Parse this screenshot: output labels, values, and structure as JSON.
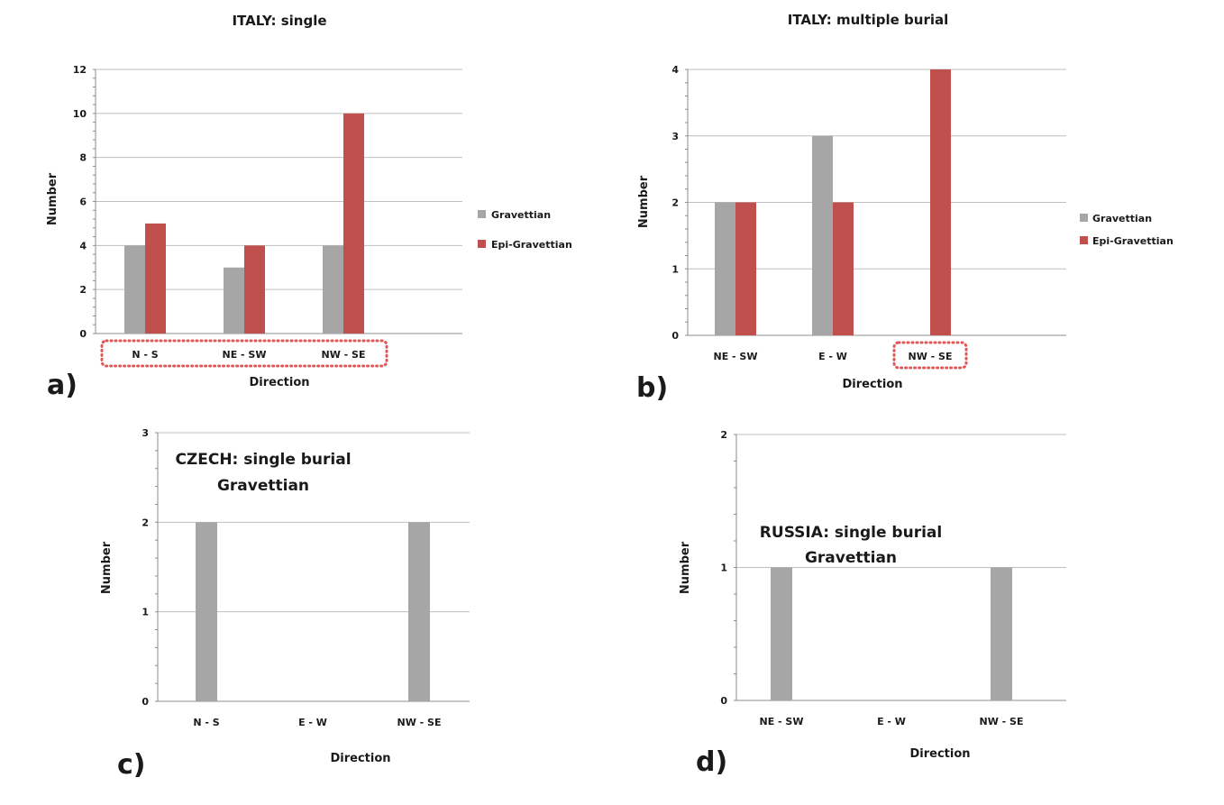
{
  "colors": {
    "gravettian": "#a6a6a6",
    "epi_gravettian": "#c0504d",
    "highlight": "#e05555",
    "grid": "#bfbfbf",
    "axis": "#8c8c8c"
  },
  "chart_data": [
    {
      "type": "bar",
      "panel_label": "a)",
      "title": "ITALY: single",
      "xlabel": "Direction",
      "ylabel": "Number",
      "ylim": [
        0,
        12
      ],
      "yticks": [
        0,
        2,
        4,
        6,
        8,
        10,
        12
      ],
      "grid": true,
      "legend": "right",
      "categories": [
        "N - S",
        "NE - SW",
        "NW - SE"
      ],
      "highlighted_categories": [
        "N - S",
        "NE - SW",
        "NW - SE"
      ],
      "series": [
        {
          "name": "Gravettian",
          "color": "#a6a6a6",
          "values": [
            4,
            3,
            4
          ]
        },
        {
          "name": "Epi-Gravettian",
          "color": "#c0504d",
          "values": [
            5,
            4,
            10
          ]
        }
      ]
    },
    {
      "type": "bar",
      "panel_label": "b)",
      "title": "ITALY: multiple burial",
      "xlabel": "Direction",
      "ylabel": "Number",
      "ylim": [
        0,
        4
      ],
      "yticks": [
        0,
        1,
        2,
        3,
        4
      ],
      "grid": true,
      "legend": "right",
      "categories": [
        "NE - SW",
        "E - W",
        "NW - SE"
      ],
      "highlighted_categories": [
        "NW - SE"
      ],
      "series": [
        {
          "name": "Gravettian",
          "color": "#a6a6a6",
          "values": [
            2,
            3,
            0
          ]
        },
        {
          "name": "Epi-Gravettian",
          "color": "#c0504d",
          "values": [
            2,
            2,
            4
          ]
        }
      ]
    },
    {
      "type": "bar",
      "panel_label": "c)",
      "title": "CZECH: single burial",
      "subtitle": "Gravettian",
      "xlabel": "Direction",
      "ylabel": "Number",
      "ylim": [
        0,
        3
      ],
      "yticks": [
        0,
        1,
        2,
        3
      ],
      "grid": true,
      "legend": "none",
      "categories": [
        "N - S",
        "E - W",
        "NW - SE"
      ],
      "highlighted_categories": [],
      "series": [
        {
          "color": "#a6a6a6",
          "values": [
            2,
            0,
            2
          ]
        }
      ]
    },
    {
      "type": "bar",
      "panel_label": "d)",
      "title": "RUSSIA: single burial",
      "subtitle": "Gravettian",
      "xlabel": "Direction",
      "ylabel": "Number",
      "ylim": [
        0,
        2
      ],
      "yticks": [
        0,
        1,
        2
      ],
      "grid": true,
      "legend": "none",
      "categories": [
        "NE - SW",
        "E - W",
        "NW - SE"
      ],
      "highlighted_categories": [],
      "series": [
        {
          "color": "#a6a6a6",
          "values": [
            1,
            0,
            1
          ]
        }
      ]
    }
  ]
}
